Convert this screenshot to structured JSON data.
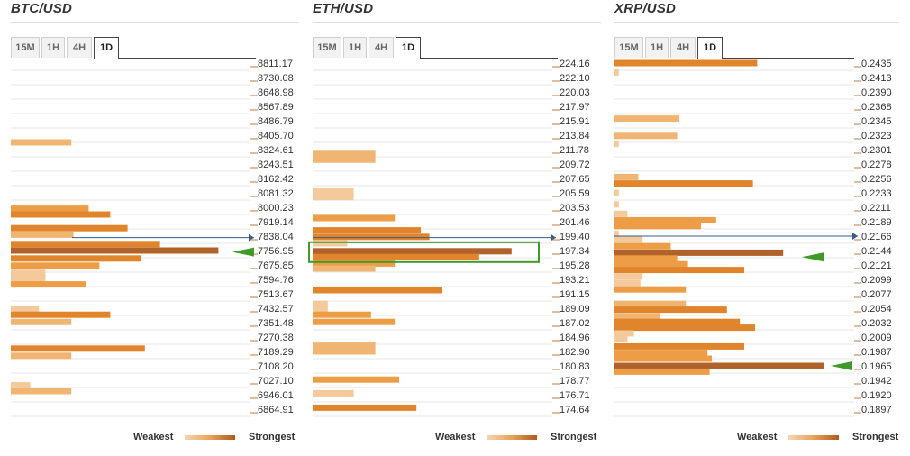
{
  "colors": {
    "c1": "#f4c99b",
    "c2": "#f0b572",
    "c3": "#ec9d45",
    "c4": "#e0852b",
    "c5": "#b1612a",
    "grid": "#e6e6e6",
    "current": "#3a5a8c",
    "arrow": "#3f9a2a",
    "box": "#3f9a2a"
  },
  "legend": {
    "weakest": "Weakest",
    "strongest": "Strongest"
  },
  "panels": [
    {
      "title": "BTC/USD",
      "tabs": [
        "15M",
        "1H",
        "4H",
        "1D"
      ],
      "active_tab": "1D"
    },
    {
      "title": "ETH/USD",
      "tabs": [
        "15M",
        "1H",
        "4H",
        "1D"
      ],
      "active_tab": "1D"
    },
    {
      "title": "XRP/USD",
      "tabs": [
        "15M",
        "1H",
        "4H",
        "1D"
      ],
      "active_tab": "1D"
    }
  ],
  "chart_data": [
    {
      "type": "bar",
      "title": "BTC/USD",
      "orientation": "horizontal",
      "value_scale": "confluence strength (0 = weakest, 1 = strongest)",
      "price_labels": [
        "8811.17",
        "8730.08",
        "8648.98",
        "8567.89",
        "8486.79",
        "8405.70",
        "8324.61",
        "8243.51",
        "8162.42",
        "8081.32",
        "8000.23",
        "7919.14",
        "7838.04",
        "7756.95",
        "7675.85",
        "7594.76",
        "7513.67",
        "7432.57",
        "7351.48",
        "7270.38",
        "7189.29",
        "7108.20",
        "7027.10",
        "6946.01",
        "6864.91"
      ],
      "current_price_index": 12.1,
      "arrow_index": 13.1,
      "bars": [
        {
          "i": 5.5,
          "v": 0.28,
          "c": 2
        },
        {
          "i": 10.1,
          "v": 0.36,
          "c": 3
        },
        {
          "i": 10.5,
          "v": 0.46,
          "c": 4
        },
        {
          "i": 11.45,
          "v": 0.54,
          "c": 4
        },
        {
          "i": 11.9,
          "v": 0.29,
          "c": 2
        },
        {
          "i": 12.55,
          "v": 0.69,
          "c": 4
        },
        {
          "i": 13.0,
          "v": 0.96,
          "c": 5
        },
        {
          "i": 13.55,
          "v": 0.6,
          "c": 4
        },
        {
          "i": 14.05,
          "v": 0.41,
          "c": 3
        },
        {
          "i": 14.55,
          "v": 0.16,
          "c": 1
        },
        {
          "i": 14.95,
          "v": 0.16,
          "c": 1
        },
        {
          "i": 15.35,
          "v": 0.35,
          "c": 3
        },
        {
          "i": 17.05,
          "v": 0.13,
          "c": 1
        },
        {
          "i": 17.45,
          "v": 0.46,
          "c": 4
        },
        {
          "i": 17.95,
          "v": 0.28,
          "c": 2
        },
        {
          "i": 19.8,
          "v": 0.62,
          "c": 4
        },
        {
          "i": 20.3,
          "v": 0.28,
          "c": 2
        },
        {
          "i": 22.35,
          "v": 0.09,
          "c": 1
        },
        {
          "i": 22.75,
          "v": 0.28,
          "c": 2
        }
      ]
    },
    {
      "type": "bar",
      "title": "ETH/USD",
      "orientation": "horizontal",
      "value_scale": "confluence strength (0 = weakest, 1 = strongest)",
      "price_labels": [
        "224.16",
        "222.10",
        "220.03",
        "217.97",
        "215.91",
        "213.84",
        "211.78",
        "209.72",
        "207.65",
        "205.59",
        "203.53",
        "201.46",
        "199.40",
        "197.34",
        "195.28",
        "193.21",
        "191.15",
        "189.09",
        "187.02",
        "184.96",
        "182.90",
        "180.83",
        "178.77",
        "176.71",
        "174.64"
      ],
      "current_price_index": 12.1,
      "arrow_index": 13.0,
      "bars": [
        {
          "i": 6.3,
          "v": 0.29,
          "c": 2
        },
        {
          "i": 6.7,
          "v": 0.29,
          "c": 2
        },
        {
          "i": 8.9,
          "v": 0.19,
          "c": 1
        },
        {
          "i": 9.3,
          "v": 0.19,
          "c": 1
        },
        {
          "i": 10.75,
          "v": 0.38,
          "c": 3
        },
        {
          "i": 11.6,
          "v": 0.5,
          "c": 4
        },
        {
          "i": 12.05,
          "v": 0.54,
          "c": 4
        },
        {
          "i": 12.5,
          "v": 0.16,
          "c": 1
        },
        {
          "i": 13.05,
          "v": 0.92,
          "c": 5
        },
        {
          "i": 13.45,
          "v": 0.77,
          "c": 4
        },
        {
          "i": 13.9,
          "v": 0.38,
          "c": 3
        },
        {
          "i": 14.25,
          "v": 0.29,
          "c": 2
        },
        {
          "i": 15.75,
          "v": 0.6,
          "c": 4
        },
        {
          "i": 16.7,
          "v": 0.07,
          "c": 1
        },
        {
          "i": 17.1,
          "v": 0.07,
          "c": 1
        },
        {
          "i": 17.45,
          "v": 0.27,
          "c": 3
        },
        {
          "i": 17.95,
          "v": 0.38,
          "c": 3
        },
        {
          "i": 19.6,
          "v": 0.29,
          "c": 2
        },
        {
          "i": 20.0,
          "v": 0.29,
          "c": 2
        },
        {
          "i": 21.95,
          "v": 0.4,
          "c": 3
        },
        {
          "i": 22.9,
          "v": 0.19,
          "c": 1
        },
        {
          "i": 23.9,
          "v": 0.48,
          "c": 4
        }
      ]
    },
    {
      "type": "bar",
      "title": "XRP/USD",
      "orientation": "horizontal",
      "value_scale": "confluence strength (0 = weakest, 1 = strongest)",
      "price_labels": [
        "0.2435",
        "0.2413",
        "0.2390",
        "0.2368",
        "0.2345",
        "0.2323",
        "0.2301",
        "0.2278",
        "0.2256",
        "0.2233",
        "0.2211",
        "0.2189",
        "0.2166",
        "0.2144",
        "0.2121",
        "0.2099",
        "0.2077",
        "0.2054",
        "0.2032",
        "0.2009",
        "0.1987",
        "0.1965",
        "0.1942",
        "0.1920",
        "0.1897"
      ],
      "current_price_index": 12.0,
      "arrow_index": 13.45,
      "bars": [
        {
          "i": 0.0,
          "v": 0.66,
          "c": 4
        },
        {
          "i": 0.65,
          "v": 0.02,
          "c": 1
        },
        {
          "i": 3.85,
          "v": 0.3,
          "c": 2
        },
        {
          "i": 5.05,
          "v": 0.29,
          "c": 2
        },
        {
          "i": 5.6,
          "v": 0.02,
          "c": 1
        },
        {
          "i": 7.9,
          "v": 0.11,
          "c": 2
        },
        {
          "i": 8.35,
          "v": 0.64,
          "c": 4
        },
        {
          "i": 9.0,
          "v": 0.02,
          "c": 1
        },
        {
          "i": 9.8,
          "v": 0.02,
          "c": 1
        },
        {
          "i": 10.45,
          "v": 0.06,
          "c": 1
        },
        {
          "i": 10.9,
          "v": 0.47,
          "c": 3
        },
        {
          "i": 11.3,
          "v": 0.4,
          "c": 3
        },
        {
          "i": 11.85,
          "v": 0.02,
          "c": 1
        },
        {
          "i": 12.25,
          "v": 0.13,
          "c": 1
        },
        {
          "i": 12.7,
          "v": 0.26,
          "c": 3
        },
        {
          "i": 13.15,
          "v": 0.78,
          "c": 5
        },
        {
          "i": 13.55,
          "v": 0.29,
          "c": 3
        },
        {
          "i": 13.95,
          "v": 0.34,
          "c": 3
        },
        {
          "i": 14.35,
          "v": 0.6,
          "c": 4
        },
        {
          "i": 14.8,
          "v": 0.13,
          "c": 1
        },
        {
          "i": 15.25,
          "v": 0.12,
          "c": 1
        },
        {
          "i": 15.7,
          "v": 0.33,
          "c": 3
        },
        {
          "i": 16.7,
          "v": 0.33,
          "c": 2
        },
        {
          "i": 17.1,
          "v": 0.52,
          "c": 4
        },
        {
          "i": 17.55,
          "v": 0.21,
          "c": 2
        },
        {
          "i": 17.95,
          "v": 0.58,
          "c": 4
        },
        {
          "i": 18.35,
          "v": 0.65,
          "c": 4
        },
        {
          "i": 18.75,
          "v": 0.09,
          "c": 1
        },
        {
          "i": 19.15,
          "v": 0.06,
          "c": 1
        },
        {
          "i": 19.65,
          "v": 0.6,
          "c": 4
        },
        {
          "i": 20.1,
          "v": 0.43,
          "c": 3
        },
        {
          "i": 20.5,
          "v": 0.45,
          "c": 3
        },
        {
          "i": 21.0,
          "v": 0.97,
          "c": 5
        },
        {
          "i": 21.4,
          "v": 0.44,
          "c": 3
        }
      ]
    }
  ]
}
